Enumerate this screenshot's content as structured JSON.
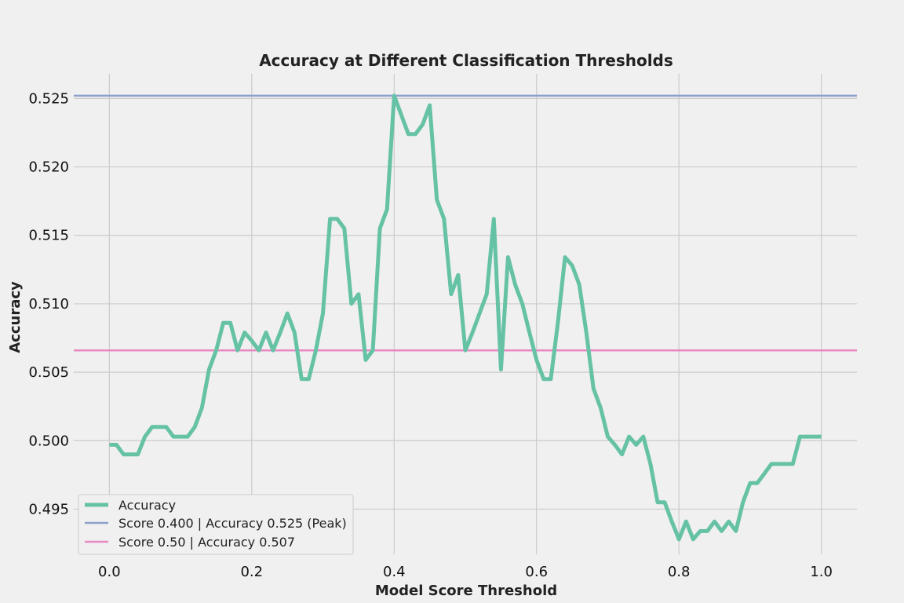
{
  "chart_data": {
    "type": "line",
    "title": "Accuracy at Different Classification Thresholds",
    "xlabel": "Model Score Threshold",
    "ylabel": "Accuracy",
    "xlim": [
      -0.05,
      1.05
    ],
    "ylim": [
      0.4917,
      0.5268
    ],
    "xticks": [
      0.0,
      0.2,
      0.4,
      0.6,
      0.8,
      1.0
    ],
    "xtick_labels": [
      "0.0",
      "0.2",
      "0.4",
      "0.6",
      "0.8",
      "1.0"
    ],
    "yticks": [
      0.495,
      0.5,
      0.505,
      0.51,
      0.515,
      0.52,
      0.525
    ],
    "ytick_labels": [
      "0.495",
      "0.500",
      "0.505",
      "0.510",
      "0.515",
      "0.520",
      "0.525"
    ],
    "grid": true,
    "legend_position": "lower-left",
    "series": [
      {
        "name": "Accuracy",
        "color": "#66c2a5",
        "x": [
          0.0,
          0.01,
          0.02,
          0.03,
          0.04,
          0.05,
          0.06,
          0.07,
          0.08,
          0.09,
          0.1,
          0.11,
          0.12,
          0.13,
          0.14,
          0.15,
          0.16,
          0.17,
          0.18,
          0.19,
          0.2,
          0.21,
          0.22,
          0.23,
          0.24,
          0.25,
          0.26,
          0.27,
          0.28,
          0.29,
          0.3,
          0.31,
          0.32,
          0.33,
          0.34,
          0.35,
          0.36,
          0.37,
          0.38,
          0.39,
          0.4,
          0.41,
          0.42,
          0.43,
          0.44,
          0.45,
          0.46,
          0.47,
          0.48,
          0.49,
          0.5,
          0.51,
          0.52,
          0.53,
          0.54,
          0.55,
          0.56,
          0.57,
          0.58,
          0.59,
          0.6,
          0.61,
          0.62,
          0.63,
          0.64,
          0.65,
          0.66,
          0.67,
          0.68,
          0.69,
          0.7,
          0.71,
          0.72,
          0.73,
          0.74,
          0.75,
          0.76,
          0.77,
          0.78,
          0.79,
          0.8,
          0.81,
          0.82,
          0.83,
          0.84,
          0.85,
          0.86,
          0.87,
          0.88,
          0.89,
          0.9,
          0.91,
          0.92,
          0.93,
          0.94,
          0.95,
          0.96,
          0.97,
          0.98,
          0.99,
          1.0
        ],
        "values": [
          0.4997,
          0.4997,
          0.499,
          0.499,
          0.499,
          0.5003,
          0.501,
          0.501,
          0.501,
          0.5003,
          0.5003,
          0.5003,
          0.501,
          0.5024,
          0.5052,
          0.5066,
          0.5086,
          0.5086,
          0.5066,
          0.5079,
          0.5073,
          0.5066,
          0.5079,
          0.5066,
          0.5079,
          0.5093,
          0.5079,
          0.5045,
          0.5045,
          0.5066,
          0.5093,
          0.5162,
          0.5162,
          0.5155,
          0.51,
          0.5107,
          0.5059,
          0.5066,
          0.5155,
          0.5169,
          0.5252,
          0.5238,
          0.5224,
          0.5224,
          0.5231,
          0.5245,
          0.5176,
          0.5162,
          0.5107,
          0.5121,
          0.5066,
          0.5079,
          0.5093,
          0.5107,
          0.5162,
          0.5052,
          0.5134,
          0.5114,
          0.51,
          0.5079,
          0.5059,
          0.5045,
          0.5045,
          0.5086,
          0.5134,
          0.5128,
          0.5114,
          0.5079,
          0.5038,
          0.5024,
          0.5003,
          0.4997,
          0.499,
          0.5003,
          0.4997,
          0.5003,
          0.4983,
          0.4955,
          0.4955,
          0.4941,
          0.4928,
          0.4941,
          0.4928,
          0.4934,
          0.4934,
          0.4941,
          0.4934,
          0.4941,
          0.4934,
          0.4955,
          0.4969,
          0.4969,
          0.4976,
          0.4983,
          0.4983,
          0.4983,
          0.4983,
          0.5003,
          0.5003,
          0.5003,
          0.5003
        ]
      },
      {
        "name": "Score 0.400 | Accuracy 0.525 (Peak)",
        "color": "#8da0cb",
        "hline": 0.5252
      },
      {
        "name": "Score 0.50 | Accuracy 0.507",
        "color": "#e78ac3",
        "hline": 0.5066
      }
    ]
  }
}
